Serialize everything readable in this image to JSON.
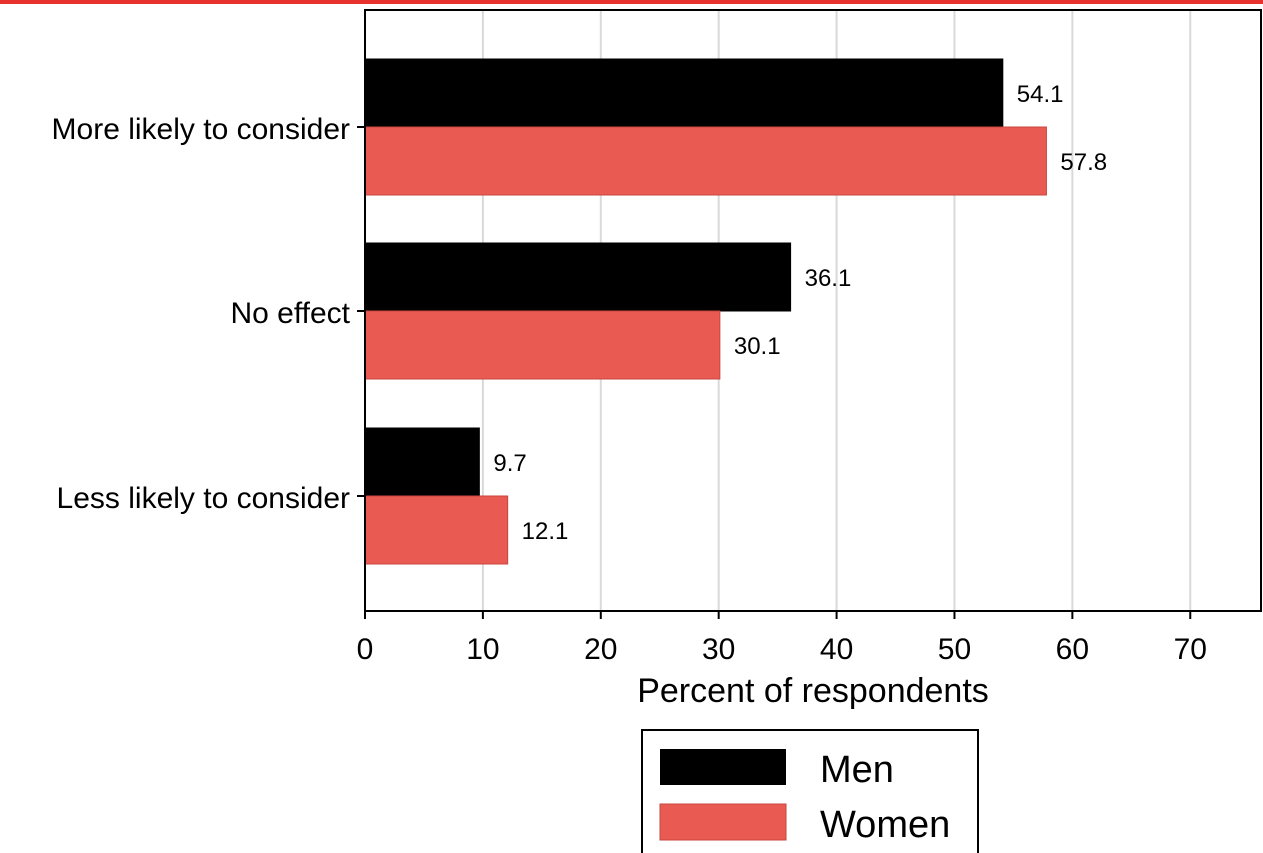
{
  "colors": {
    "men": "#000000",
    "women": "#E85A52",
    "accent_bar": "#E8322E",
    "grid": "#d9d9d9"
  },
  "chart_data": {
    "type": "bar",
    "orientation": "horizontal",
    "categories": [
      "More likely to consider",
      "No effect",
      "Less likely to consider"
    ],
    "series": [
      {
        "name": "Men",
        "values": [
          54.1,
          36.1,
          9.7
        ]
      },
      {
        "name": "Women",
        "values": [
          57.8,
          30.1,
          12.1
        ]
      }
    ],
    "value_labels": [
      [
        "54.1",
        "36.1",
        "9.7"
      ],
      [
        "57.8",
        "30.1",
        "12.1"
      ]
    ],
    "xlabel": "Percent of respondents",
    "ylabel": "",
    "xlim": [
      0,
      76
    ],
    "x_ticks": [
      0,
      10,
      20,
      30,
      40,
      50,
      60,
      70
    ],
    "x_tick_labels": [
      "0",
      "10",
      "20",
      "30",
      "40",
      "50",
      "60",
      "70"
    ],
    "grid": "vertical",
    "legend": {
      "placement": "bottom-center",
      "entries": [
        "Men",
        "Women"
      ]
    }
  }
}
